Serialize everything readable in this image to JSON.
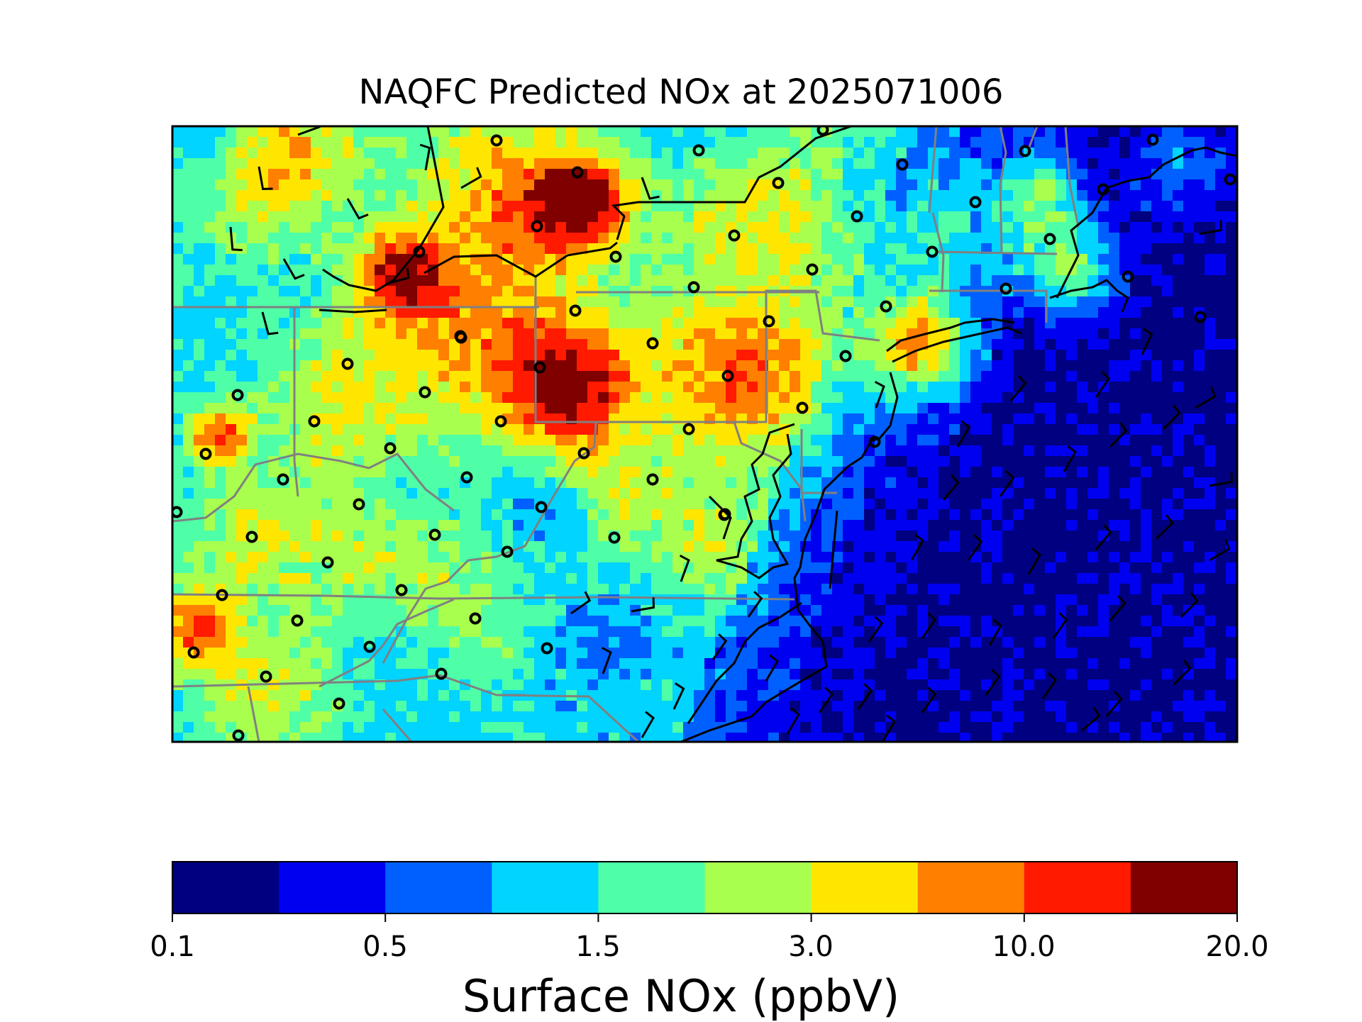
{
  "title": "NAQFC Predicted NOx at 2025071006",
  "colorbar": {
    "label": "Surface NOx (ppbV)",
    "tick_labels": [
      "0.1",
      "0.5",
      "1.5",
      "3.0",
      "10.0",
      "20.0"
    ],
    "levels": [
      "0.1",
      "0.3",
      "0.5",
      "1.0",
      "1.5",
      "2.0",
      "3.0",
      "5.0",
      "10.0",
      "15.0",
      "20.0"
    ],
    "colors": [
      "#000080",
      "#0000f1",
      "#0060ff",
      "#00d4ff",
      "#4effa8",
      "#a8ff4e",
      "#ffe600",
      "#ff7f00",
      "#ff1a00",
      "#800000"
    ]
  },
  "chart_data": {
    "type": "heatmap",
    "title": "NAQFC Predicted NOx at 2025071006",
    "colorbar_label": "Surface NOx (ppbV)",
    "colorbar_ticks": [
      0.1,
      0.5,
      1.5,
      3.0,
      10.0,
      20.0
    ],
    "levels": [
      0.1,
      0.3,
      0.5,
      1.0,
      1.5,
      2.0,
      3.0,
      5.0,
      10.0,
      15.0,
      20.0
    ],
    "overlays": [
      "state boundaries",
      "coastline",
      "wind barbs",
      "observation site markers"
    ]
  }
}
